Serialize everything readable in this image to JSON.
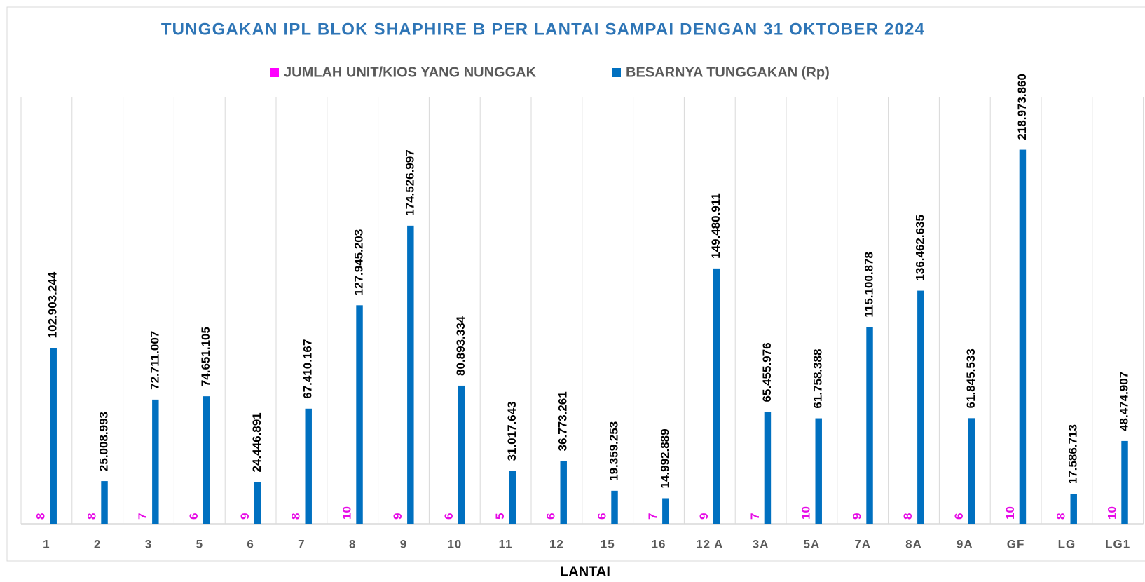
{
  "chart_data": {
    "type": "bar",
    "title": "TUNGGAKAN IPL BLOK SHAPHIRE B  PER LANTAI SAMPAI DENGAN 31 OKTOBER 2024",
    "xlabel": "LANTAI",
    "categories": [
      "1",
      "2",
      "3",
      "5",
      "6",
      "7",
      "8",
      "9",
      "10",
      "11",
      "12",
      "15",
      "16",
      "12 A",
      "3A",
      "5A",
      "7A",
      "8A",
      "9A",
      "GF",
      "LG",
      "LG1"
    ],
    "series": [
      {
        "name": "JUMLAH UNIT/KIOS YANG NUNGGAK",
        "color": "#ff00ff",
        "values": [
          8,
          8,
          7,
          6,
          9,
          8,
          10,
          9,
          6,
          5,
          6,
          6,
          7,
          9,
          7,
          10,
          9,
          8,
          6,
          10,
          8,
          10
        ]
      },
      {
        "name": "BESARNYA TUNGGAKAN (Rp)",
        "color": "#0070c0",
        "values": [
          102903244,
          25008993,
          72711007,
          74651105,
          24446891,
          67410167,
          127945203,
          174526997,
          80893334,
          31017643,
          36773261,
          19359253,
          14992889,
          149480911,
          65455976,
          61758388,
          115100878,
          136462635,
          61845533,
          218973860,
          17586713,
          48474907
        ],
        "value_labels": [
          "102.903.244",
          "25.008.993",
          "72.711.007",
          "74.651.105",
          "24.446.891",
          "67.410.167",
          "127.945.203",
          "174.526.997",
          "80.893.334",
          "31.017.643",
          "36.773.261",
          "19.359.253",
          "14.992.889",
          "149.480.911",
          "65.455.976",
          "61.758.388",
          "115.100.878",
          "136.462.635",
          "61.845.533",
          "218.973.860",
          "17.586.713",
          "48.474.907"
        ]
      }
    ],
    "ylim": [
      0,
      250000000
    ],
    "legend": "top"
  }
}
